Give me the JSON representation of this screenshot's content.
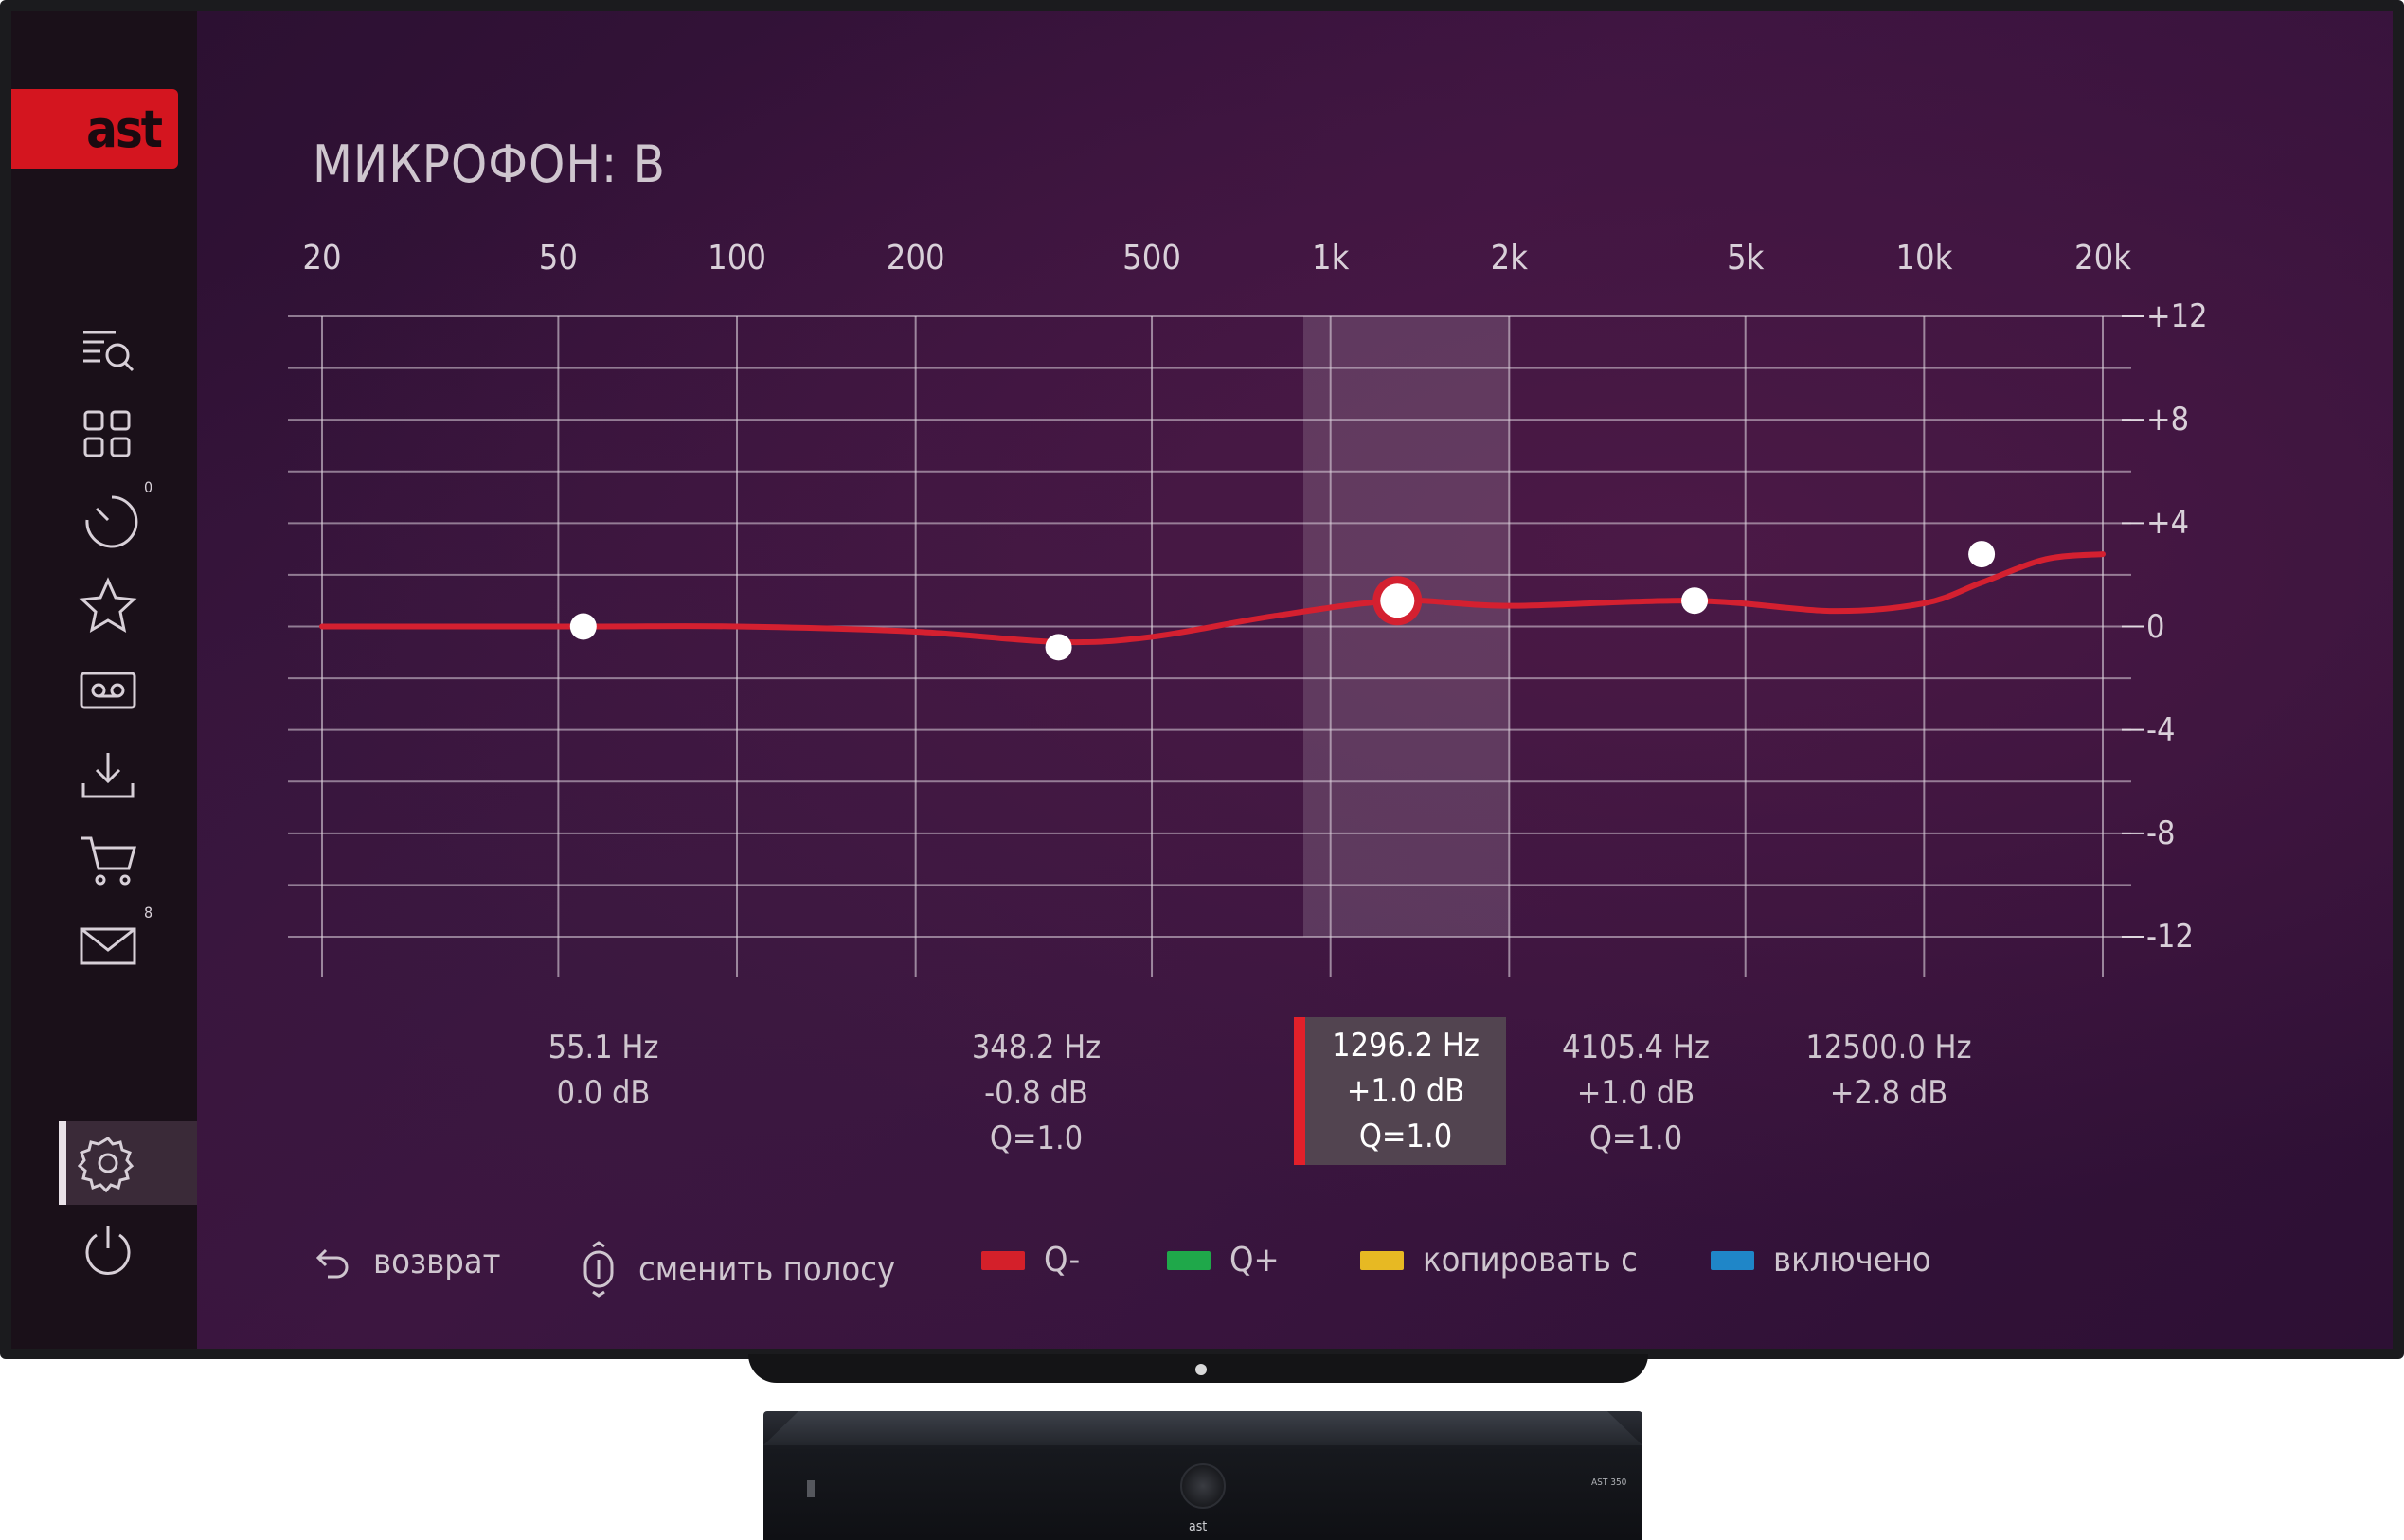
{
  "app": {
    "logo": "ast",
    "title": "МИКРОФОН: B"
  },
  "sidebar": {
    "items": [
      {
        "icon": "search-list-icon"
      },
      {
        "icon": "grid-icon"
      },
      {
        "icon": "timer-icon",
        "badge": "0"
      },
      {
        "icon": "star-icon"
      },
      {
        "icon": "cassette-icon"
      },
      {
        "icon": "download-icon"
      },
      {
        "icon": "cart-icon"
      },
      {
        "icon": "mail-icon",
        "badge": "8"
      },
      {
        "icon": "gear-icon",
        "active": true
      },
      {
        "icon": "power-icon"
      }
    ]
  },
  "chart_data": {
    "type": "line",
    "x_scale": "log",
    "x_tick_labels": [
      "20",
      "50",
      "100",
      "200",
      "500",
      "1k",
      "2k",
      "5k",
      "10k",
      "20k"
    ],
    "y_tick_labels": [
      "+12",
      "+8",
      "+4",
      "0",
      "-4",
      "-8",
      "-12"
    ],
    "ylim": [
      -12,
      12
    ],
    "bands": [
      {
        "freq_label": "55.1 Hz",
        "gain_label": "0.0 dB",
        "q_label": "",
        "freq": 55.1,
        "gain": 0.0
      },
      {
        "freq_label": "348.2 Hz",
        "gain_label": "-0.8 dB",
        "q_label": "Q=1.0",
        "freq": 348.2,
        "gain": -0.8
      },
      {
        "freq_label": "1296.2 Hz",
        "gain_label": "+1.0 dB",
        "q_label": "Q=1.0",
        "freq": 1296.2,
        "gain": 1.0,
        "selected": true
      },
      {
        "freq_label": "4105.4 Hz",
        "gain_label": "+1.0 dB",
        "q_label": "Q=1.0",
        "freq": 4105.4,
        "gain": 1.0
      },
      {
        "freq_label": "12500.0 Hz",
        "gain_label": "+2.8 dB",
        "q_label": "",
        "freq": 12500.0,
        "gain": 2.8
      }
    ],
    "curve": {
      "x": [
        20,
        55.1,
        100,
        200,
        348.2,
        500,
        800,
        1296.2,
        2000,
        4105.4,
        7000,
        10000,
        12500,
        16000,
        20000
      ],
      "y": [
        0,
        0,
        0,
        -0.2,
        -0.6,
        -0.4,
        0.4,
        1.0,
        0.8,
        1.0,
        0.6,
        0.9,
        1.7,
        2.6,
        2.8
      ]
    },
    "selected_region_freq": [
      900,
      2000
    ],
    "curve_color": "#d42030",
    "grid": true
  },
  "footer": {
    "back_label": "возврат",
    "change_band_label": "сменить полосу",
    "red_label": "Q-",
    "green_label": "Q+",
    "yellow_label": "копировать с",
    "blue_label": "включено",
    "colors": {
      "red": "#d4202a",
      "green": "#1fa84a",
      "yellow": "#e7b923",
      "blue": "#1f86c8"
    }
  },
  "device": {
    "logo": "ast",
    "badge": "AST 350"
  }
}
